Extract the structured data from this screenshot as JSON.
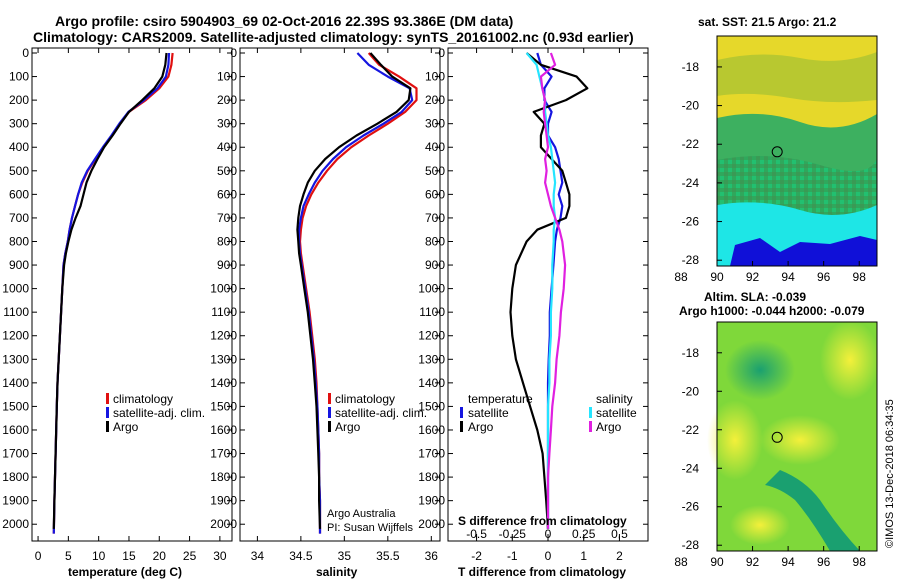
{
  "titles": {
    "line1": "Argo profile: csiro 5904903_69 02-Oct-2016 22.39S 93.386E (DM data)",
    "line2": "Climatology: CARS2009. Satellite-adjusted climatology: synTS_20161002.nc (0.93d earlier)"
  },
  "credit": {
    "line1": "Argo Australia",
    "line2": "PI: Susan Wijffels",
    "imos": "©IMOS 13-Dec-2018 06:34:35"
  },
  "legend": {
    "climatology": "climatology",
    "satellite_adj": "satellite-adj. clim.",
    "argo": "Argo",
    "temperature": "temperature",
    "salinity": "salinity",
    "satellite": "satellite"
  },
  "colors": {
    "climatology": "#e01010",
    "satellite": "#1515e0",
    "argo": "#000000",
    "sal_satellite": "#25e5ff",
    "sal_argo": "#e020e0"
  },
  "chart_data": [
    {
      "type": "line",
      "name": "temperature",
      "xlabel": "temperature (deg C)",
      "ylabel": "pressure",
      "xlim": [
        -1,
        32
      ],
      "ylim": [
        2050,
        0
      ],
      "xticks": [
        0,
        5,
        10,
        15,
        20,
        25,
        30
      ],
      "yticks": [
        0,
        100,
        200,
        300,
        400,
        500,
        600,
        700,
        800,
        900,
        1000,
        1100,
        1200,
        1300,
        1400,
        1500,
        1600,
        1700,
        1800,
        1900,
        2000
      ],
      "series": [
        {
          "name": "climatology",
          "color": "#e01010",
          "x": [
            22.2,
            22.0,
            21.5,
            20.0,
            17.8,
            15.0,
            13.5,
            12.2,
            10.8,
            9.5,
            8.2,
            7.3,
            6.6,
            6.1,
            5.6,
            5.2,
            4.9,
            4.5,
            4.2,
            4.0,
            3.8,
            3.6,
            3.4,
            3.2,
            3.1,
            3.0,
            2.9,
            2.8,
            2.7,
            2.6
          ],
          "y": [
            0,
            50,
            100,
            150,
            200,
            250,
            300,
            350,
            400,
            450,
            500,
            550,
            600,
            650,
            700,
            750,
            800,
            850,
            900,
            1000,
            1100,
            1200,
            1300,
            1400,
            1500,
            1600,
            1700,
            1800,
            1900,
            2040
          ]
        },
        {
          "name": "satellite-adj. clim.",
          "color": "#1515e0",
          "x": [
            21.6,
            21.5,
            21.1,
            19.7,
            17.5,
            14.9,
            13.4,
            12.1,
            10.7,
            9.4,
            8.1,
            7.2,
            6.6,
            6.1,
            5.6,
            5.2,
            4.9,
            4.5,
            4.2,
            4.0,
            3.8,
            3.6,
            3.4,
            3.2,
            3.1,
            3.0,
            2.9,
            2.8,
            2.7,
            2.6
          ],
          "y": [
            0,
            50,
            100,
            150,
            200,
            250,
            300,
            350,
            400,
            450,
            500,
            550,
            600,
            650,
            700,
            750,
            800,
            850,
            900,
            1000,
            1100,
            1200,
            1300,
            1400,
            1500,
            1600,
            1700,
            1800,
            1900,
            2040
          ]
        },
        {
          "name": "Argo",
          "color": "#000000",
          "x": [
            21.2,
            21.0,
            20.5,
            19.2,
            17.2,
            15.0,
            13.6,
            12.3,
            10.9,
            9.8,
            8.8,
            8.0,
            7.5,
            7.0,
            6.2,
            5.5,
            5.0,
            4.6,
            4.3,
            4.0,
            3.8,
            3.6,
            3.4,
            3.2,
            3.1,
            3.0,
            2.9,
            2.8,
            2.7,
            2.6
          ],
          "y": [
            0,
            50,
            100,
            150,
            200,
            250,
            300,
            350,
            400,
            450,
            500,
            550,
            600,
            650,
            700,
            750,
            800,
            850,
            900,
            1000,
            1100,
            1200,
            1300,
            1400,
            1500,
            1600,
            1700,
            1800,
            1900,
            2020
          ]
        }
      ]
    },
    {
      "type": "line",
      "name": "salinity",
      "xlabel": "salinity",
      "ylabel": "pressure",
      "xlim": [
        33.8,
        36.1
      ],
      "ylim": [
        2050,
        0
      ],
      "xticks": [
        34,
        34.5,
        35,
        35.5,
        36
      ],
      "series": [
        {
          "name": "climatology",
          "color": "#e01010",
          "x": [
            35.28,
            35.4,
            35.63,
            35.83,
            35.83,
            35.7,
            35.5,
            35.28,
            35.08,
            34.92,
            34.8,
            34.7,
            34.62,
            34.56,
            34.52,
            34.5,
            34.49,
            34.5,
            34.52,
            34.56,
            34.6,
            34.63,
            34.66,
            34.68,
            34.69,
            34.7,
            34.71,
            34.71,
            34.72,
            34.72
          ],
          "y": [
            0,
            50,
            100,
            150,
            200,
            250,
            300,
            350,
            400,
            450,
            500,
            550,
            600,
            650,
            700,
            750,
            800,
            850,
            900,
            1000,
            1100,
            1200,
            1300,
            1400,
            1500,
            1600,
            1700,
            1800,
            1900,
            2040
          ]
        },
        {
          "name": "satellite-adj. clim.",
          "color": "#1515e0",
          "x": [
            35.15,
            35.28,
            35.5,
            35.75,
            35.78,
            35.66,
            35.45,
            35.22,
            35.02,
            34.87,
            34.75,
            34.66,
            34.59,
            34.53,
            34.5,
            34.48,
            34.48,
            34.49,
            34.51,
            34.55,
            34.59,
            34.62,
            34.65,
            34.67,
            34.69,
            34.7,
            34.71,
            34.71,
            34.72,
            34.72
          ],
          "y": [
            0,
            50,
            100,
            150,
            200,
            250,
            300,
            350,
            400,
            450,
            500,
            550,
            600,
            650,
            700,
            750,
            800,
            850,
            900,
            1000,
            1100,
            1200,
            1300,
            1400,
            1500,
            1600,
            1700,
            1800,
            1900,
            2040
          ]
        },
        {
          "name": "Argo",
          "color": "#000000",
          "x": [
            35.3,
            35.42,
            35.55,
            35.76,
            35.74,
            35.6,
            35.38,
            35.14,
            34.94,
            34.78,
            34.66,
            34.58,
            34.53,
            34.49,
            34.47,
            34.46,
            34.47,
            34.48,
            34.5,
            34.54,
            34.58,
            34.61,
            34.64,
            34.66,
            34.68,
            34.69,
            34.7,
            34.71,
            34.71,
            34.72
          ],
          "y": [
            0,
            50,
            100,
            150,
            200,
            250,
            300,
            350,
            400,
            450,
            500,
            550,
            600,
            650,
            700,
            750,
            800,
            850,
            900,
            1000,
            1100,
            1200,
            1300,
            1400,
            1500,
            1600,
            1700,
            1800,
            1900,
            2020
          ]
        }
      ]
    },
    {
      "type": "line",
      "name": "difference",
      "xlabel": "T difference from climatology",
      "xlabel2": "S difference from climatology",
      "ylabel": "pressure",
      "xlim": [
        -2.8,
        2.8
      ],
      "ylim": [
        2050,
        0
      ],
      "xticks": [
        -2,
        -1,
        0,
        1,
        2
      ],
      "xticks_s": [
        -0.5,
        -0.25,
        0,
        0.25,
        0.5
      ],
      "xticks_s_labels": [
        "-0.5",
        "-0.25",
        "0",
        "0.25",
        "0.5"
      ],
      "series": [
        {
          "name": "temperature satellite",
          "color": "#1515e0",
          "x": [
            -0.3,
            -0.2,
            0.1,
            -0.1,
            -0.1,
            0.1,
            0.0,
            0.0,
            0.2,
            0.3,
            0.35,
            0.4,
            0.3,
            0.4,
            0.35,
            0.25,
            0.2,
            0.15,
            0.1,
            0.05,
            0.05,
            0.02,
            0.0,
            0.0,
            0.0,
            0.0,
            0.0,
            0.0,
            0.0
          ],
          "y": [
            0,
            50,
            100,
            150,
            200,
            250,
            300,
            350,
            400,
            450,
            500,
            550,
            600,
            650,
            700,
            750,
            800,
            900,
            1000,
            1100,
            1200,
            1300,
            1400,
            1500,
            1600,
            1700,
            1800,
            1900,
            2020
          ]
        },
        {
          "name": "temperature Argo",
          "color": "#000000",
          "x": [
            -0.6,
            -0.2,
            0.8,
            1.1,
            0.5,
            -0.4,
            -0.1,
            -0.2,
            -0.2,
            0.1,
            0.4,
            0.5,
            0.6,
            0.6,
            0.5,
            -0.3,
            -0.6,
            -0.9,
            -1.0,
            -1.05,
            -1.0,
            -0.9,
            -0.7,
            -0.5,
            -0.3,
            -0.15,
            -0.1,
            -0.05,
            0.0
          ],
          "y": [
            0,
            50,
            100,
            150,
            200,
            250,
            300,
            350,
            400,
            450,
            500,
            550,
            600,
            650,
            700,
            750,
            800,
            900,
            1000,
            1100,
            1200,
            1300,
            1400,
            1500,
            1600,
            1700,
            1800,
            1900,
            2020
          ]
        },
        {
          "name": "salinity satellite",
          "color": "#25e5ff",
          "x": [
            -0.15,
            -0.08,
            -0.06,
            -0.04,
            -0.02,
            -0.02,
            -0.01,
            0.0,
            0.02,
            0.03,
            0.04,
            0.05,
            0.04,
            0.04,
            0.05,
            0.04,
            0.04,
            0.03,
            0.03,
            0.02,
            0.02,
            0.01,
            0.01,
            0.0,
            0.0,
            0.0,
            0.0,
            0.0,
            0.0
          ],
          "y": [
            0,
            50,
            100,
            150,
            200,
            250,
            300,
            350,
            400,
            450,
            500,
            550,
            600,
            650,
            700,
            750,
            800,
            900,
            1000,
            1100,
            1200,
            1300,
            1400,
            1500,
            1600,
            1700,
            1800,
            1900,
            2020
          ]
        },
        {
          "name": "salinity Argo",
          "color": "#e020e0",
          "x": [
            0.02,
            0.05,
            -0.05,
            -0.04,
            -0.02,
            -0.03,
            -0.02,
            -0.01,
            0.0,
            -0.02,
            -0.01,
            -0.02,
            0.0,
            0.02,
            0.05,
            0.08,
            0.1,
            0.12,
            0.11,
            0.09,
            0.08,
            0.06,
            0.05,
            0.03,
            0.02,
            0.01,
            0.0,
            0.0,
            0.0
          ],
          "y": [
            0,
            50,
            100,
            150,
            200,
            250,
            300,
            350,
            400,
            450,
            500,
            550,
            600,
            650,
            700,
            750,
            800,
            900,
            1000,
            1100,
            1200,
            1300,
            1400,
            1500,
            1600,
            1700,
            1800,
            1900,
            2020
          ]
        }
      ]
    },
    {
      "type": "heatmap",
      "name": "sst_map",
      "title": "sat. SST: 21.5 Argo: 21.2",
      "xlim": [
        88,
        99
      ],
      "ylim": [
        -28.3,
        -16.4
      ],
      "xticks": [
        88,
        90,
        92,
        94,
        96,
        98
      ],
      "yticks": [
        -18,
        -20,
        -22,
        -24,
        -26,
        -28
      ],
      "marker": {
        "lon": 93.386,
        "lat": -22.39
      }
    },
    {
      "type": "heatmap",
      "name": "sla_map",
      "title": "Altim. SLA: -0.039",
      "subtitle": "Argo h1000: -0.044 h2000: -0.079",
      "xlim": [
        88,
        99
      ],
      "ylim": [
        -28.3,
        -16.4
      ],
      "xticks": [
        88,
        90,
        92,
        94,
        96,
        98
      ],
      "yticks": [
        -18,
        -20,
        -22,
        -24,
        -26,
        -28
      ],
      "marker": {
        "lon": 93.386,
        "lat": -22.39
      }
    }
  ]
}
